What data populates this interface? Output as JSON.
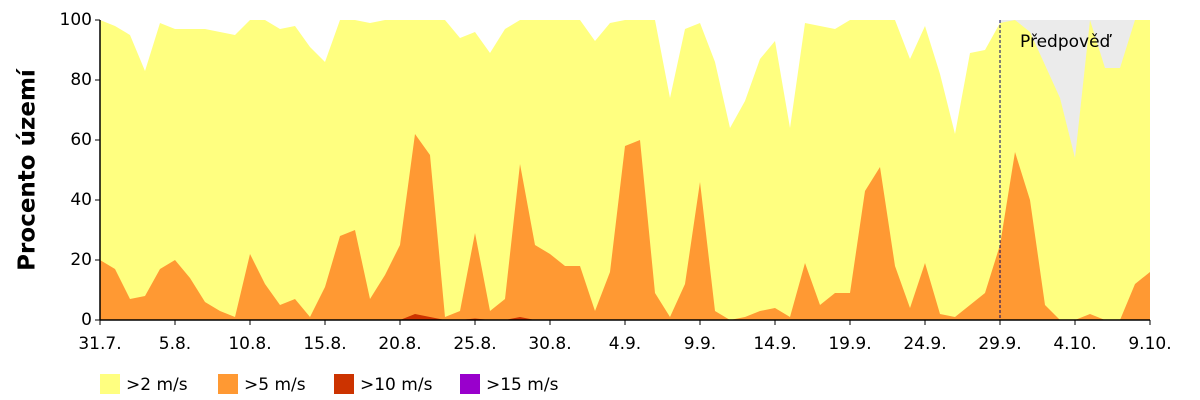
{
  "chart_data": {
    "type": "area",
    "ylabel": "Procento území",
    "categories": [
      "31.7.",
      null,
      null,
      null,
      null,
      "5.8.",
      null,
      null,
      null,
      null,
      "10.8.",
      null,
      null,
      null,
      null,
      "15.8.",
      null,
      null,
      null,
      null,
      "20.8.",
      null,
      null,
      null,
      null,
      "25.8.",
      null,
      null,
      null,
      null,
      "30.8.",
      null,
      null,
      null,
      null,
      "4.9.",
      null,
      null,
      null,
      null,
      "9.9.",
      null,
      null,
      null,
      null,
      "14.9.",
      null,
      null,
      null,
      null,
      "19.9.",
      null,
      null,
      null,
      null,
      "24.9.",
      null,
      null,
      null,
      null,
      "29.9.",
      null,
      null,
      null,
      null,
      "4.10.",
      null,
      null,
      null,
      null,
      "9.10."
    ],
    "series": [
      {
        "name": ">2 m/s",
        "color": "#ffff80",
        "values": [
          100,
          98,
          95,
          83,
          99,
          97,
          97,
          97,
          96,
          95,
          100,
          100,
          97,
          98,
          91,
          86,
          100,
          100,
          99,
          100,
          100,
          100,
          100,
          100,
          94,
          96,
          89,
          97,
          100,
          100,
          100,
          100,
          100,
          93,
          99,
          100,
          100,
          100,
          74,
          97,
          99,
          86,
          64,
          73,
          87,
          93,
          64,
          99,
          98,
          97,
          100,
          100,
          100,
          100,
          87,
          98,
          82,
          62,
          89,
          90,
          99,
          100,
          96,
          85,
          74,
          54,
          100,
          84,
          84,
          100,
          100
        ]
      },
      {
        "name": ">5 m/s",
        "color": "#ff9933",
        "values": [
          20,
          17,
          7,
          8,
          17,
          20,
          14,
          6,
          3,
          1,
          22,
          12,
          5,
          7,
          1,
          11,
          28,
          30,
          7,
          15,
          25,
          62,
          55,
          1,
          3,
          29,
          3,
          7,
          52,
          25,
          22,
          18,
          18,
          3,
          16,
          58,
          60,
          9,
          1,
          12,
          46,
          3,
          0,
          1,
          3,
          4,
          1,
          19,
          5,
          9,
          9,
          43,
          51,
          18,
          4,
          19,
          2,
          1,
          5,
          9,
          25,
          56,
          40,
          5,
          0,
          0,
          2,
          0,
          0,
          12,
          16
        ]
      },
      {
        "name": ">10 m/s",
        "color": "#cc3300",
        "values": [
          0,
          0,
          0,
          0,
          0,
          0,
          0,
          0,
          0,
          0,
          0,
          0,
          0,
          0,
          0,
          0,
          0,
          0,
          0,
          0,
          0,
          2,
          1,
          0,
          0,
          0.5,
          0,
          0,
          1,
          0,
          0,
          0,
          0,
          0,
          0,
          0,
          0,
          0,
          0,
          0,
          0,
          0,
          0,
          0,
          0,
          0,
          0,
          0,
          0,
          0,
          0,
          0,
          0,
          0,
          0,
          0,
          0,
          0,
          0,
          0,
          0,
          0,
          0,
          0,
          0,
          0,
          0,
          0,
          0,
          0,
          0
        ]
      },
      {
        "name": ">15 m/s",
        "color": "#9900cc",
        "values": [
          0,
          0,
          0,
          0,
          0,
          0,
          0,
          0,
          0,
          0,
          0,
          0,
          0,
          0,
          0,
          0,
          0,
          0,
          0,
          0,
          0,
          0,
          0,
          0,
          0,
          0,
          0,
          0,
          0,
          0,
          0,
          0,
          0,
          0,
          0,
          0,
          0,
          0,
          0,
          0,
          0,
          0,
          0,
          0,
          0,
          0,
          0,
          0,
          0,
          0,
          0,
          0,
          0,
          0,
          0,
          0,
          0,
          0,
          0,
          0,
          0,
          0,
          0,
          0,
          0,
          0,
          0,
          0,
          0,
          0,
          0
        ]
      }
    ],
    "ylim": [
      0,
      100
    ],
    "yticks": [
      0,
      20,
      40,
      60,
      80,
      100
    ],
    "annotation": {
      "text": "Předpověď",
      "at": "29.9.",
      "shade": "#ebebeb"
    },
    "legend": "bottom"
  }
}
